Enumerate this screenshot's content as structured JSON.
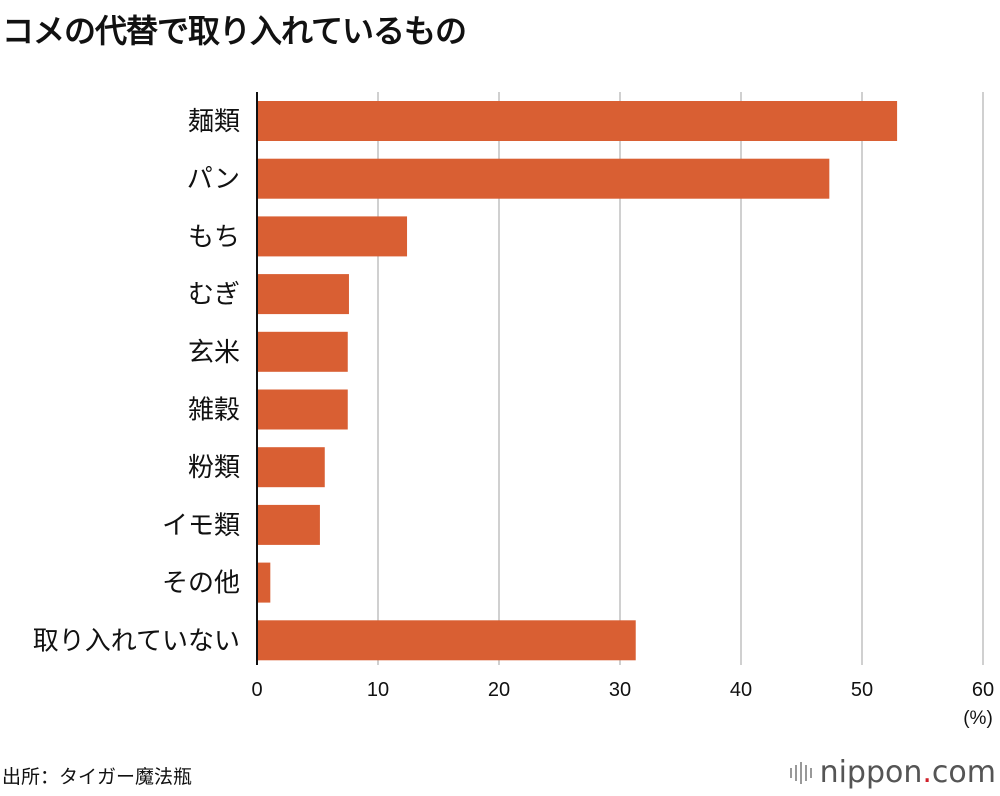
{
  "title": "コメの代替で取り入れているもの",
  "source": "出所：タイガー魔法瓶",
  "logo": {
    "name": "nippon",
    "dot": ".",
    "tld": "com"
  },
  "colors": {
    "bar": "#d95f33",
    "grid": "#d0d0d0",
    "axis": "#111111"
  },
  "chart_data": {
    "type": "bar",
    "orientation": "horizontal",
    "title": "コメの代替で取り入れているもの",
    "categories": [
      "麺類",
      "パン",
      "もち",
      "むぎ",
      "玄米",
      "雑穀",
      "粉類",
      "イモ類",
      "その他",
      "取り入れていない"
    ],
    "values": [
      52.9,
      47.3,
      12.4,
      7.6,
      7.5,
      7.5,
      5.6,
      5.2,
      1.1,
      31.3
    ],
    "xlabel": "(%)",
    "ylabel": "",
    "xlim": [
      0,
      60
    ],
    "xticks": [
      "0",
      "10",
      "20",
      "30",
      "40",
      "50",
      "60"
    ],
    "grid": true
  }
}
